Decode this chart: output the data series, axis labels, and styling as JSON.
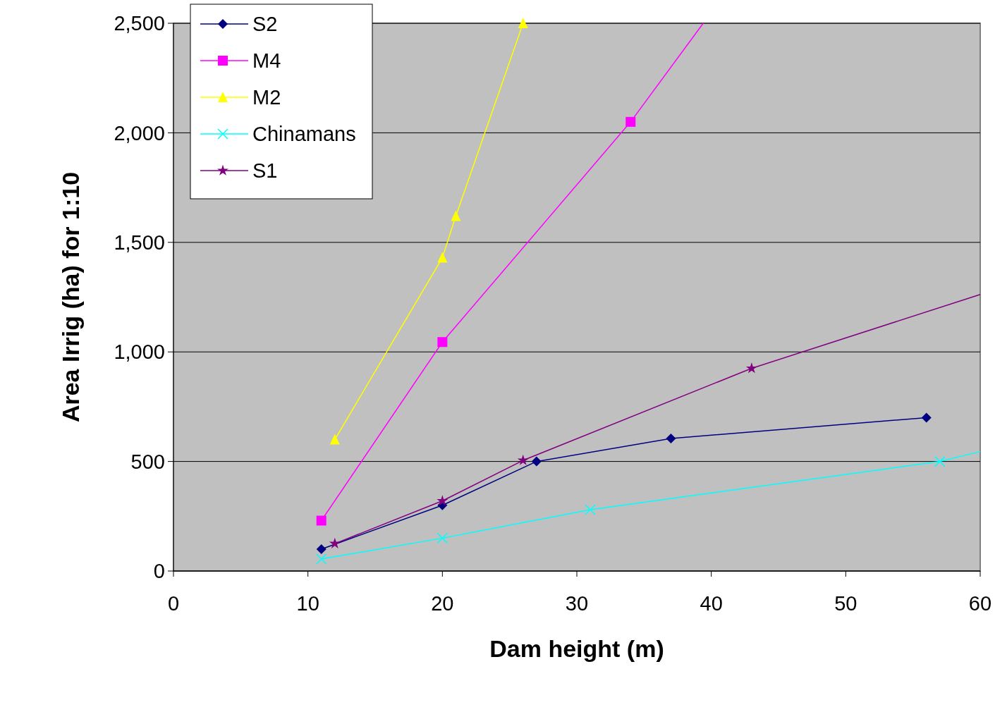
{
  "chart_data": {
    "type": "line",
    "xlabel": "Dam height (m)",
    "ylabel": "Area Irrig (ha) for 1:10",
    "xlim": [
      0,
      60
    ],
    "xticks": [
      0,
      10,
      20,
      30,
      40,
      50,
      60
    ],
    "ylim": [
      0,
      2500
    ],
    "yticks": [
      {
        "value": 0,
        "label": "0"
      },
      {
        "value": 500,
        "label": "500"
      },
      {
        "value": 1000,
        "label": "1,000"
      },
      {
        "value": 1500,
        "label": "1,500"
      },
      {
        "value": 2000,
        "label": "2,000"
      },
      {
        "value": 2500,
        "label": "2,500"
      }
    ],
    "grid": "y",
    "legend": "top left",
    "series": [
      {
        "name": "S2",
        "color": "#000080",
        "marker": "diamond",
        "x": [
          11,
          20,
          27,
          37,
          56
        ],
        "values": [
          100,
          300,
          500,
          605,
          700
        ]
      },
      {
        "name": "M4",
        "color": "#ff00ff",
        "marker": "square",
        "x": [
          11,
          20,
          34
        ],
        "values": [
          230,
          1045,
          2050
        ]
      },
      {
        "name": "M2",
        "color": "#ffff00",
        "marker": "triangle",
        "x": [
          12,
          20,
          21,
          26
        ],
        "values": [
          600,
          1430,
          1620,
          2500
        ]
      },
      {
        "name": "Chinamans",
        "color": "#00ffff",
        "marker": "cross",
        "x": [
          11,
          20,
          31,
          57
        ],
        "values": [
          55,
          150,
          280,
          500
        ]
      },
      {
        "name": "S1",
        "color": "#800080",
        "marker": "star",
        "x": [
          12,
          20,
          26,
          43
        ],
        "values": [
          125,
          320,
          505,
          925
        ]
      },
      {
        "color": "#ff00ff",
        "marker": "none",
        "x": [
          34,
          39.4
        ],
        "values": [
          2050,
          2500
        ]
      },
      {
        "color": "#00ffff",
        "marker": "none",
        "x": [
          57,
          60
        ],
        "values": [
          500,
          545
        ]
      },
      {
        "color": "#800080",
        "marker": "none",
        "x": [
          43,
          60
        ],
        "values": [
          925,
          1262
        ]
      }
    ]
  }
}
